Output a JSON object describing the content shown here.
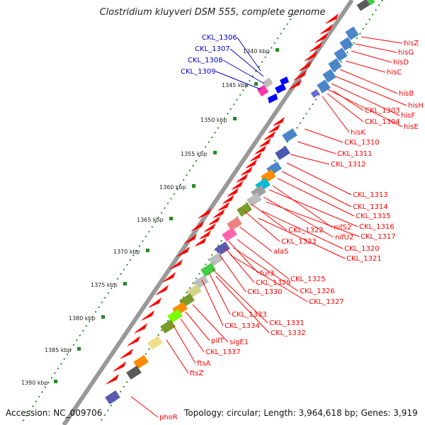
{
  "title": "Clostridium kluyveri DSM 555, complete genome",
  "footer": {
    "accession": "Accession: NC_009706",
    "topology": "Topology: circular; Length: 3,964,618 bp; Genes: 3,919"
  },
  "colors": {
    "backbone": "#888888",
    "forward_arrow": "#ff0000",
    "reverse_arrow": "#0000ff",
    "blue_label": "#0000cc",
    "red_label": "#ff0000",
    "tick": "#228b22"
  },
  "ticks": [
    "1340 kbp",
    "1345 kbp",
    "1350 kbp",
    "1355 kbp",
    "1360 kbp",
    "1365 kbp",
    "1370 kbp",
    "1375 kbp",
    "1380 kbp",
    "1385 kbp",
    "1390 kbp"
  ],
  "genes_blue": [
    "CKL_1306",
    "CKL_1307",
    "CKL_1308",
    "CKL_1309"
  ],
  "genes_red": [
    "hisZ",
    "hisG",
    "hisD",
    "hisC",
    "hisB",
    "hisH",
    "hisF",
    "hisE",
    "CKL_1303",
    "CKL_1304",
    "hisK",
    "CKL_1310",
    "CKL_1311",
    "CKL_1312",
    "CKL_1313",
    "CKL_1314",
    "CKL_1315",
    "nifS2",
    "CKL_1316",
    "nifU2",
    "CKL_1317",
    "CKL_1322",
    "CKL_1323",
    "CKL_1320",
    "CKL_1321",
    "alaS",
    "fur3",
    "CKL_1325",
    "CKL_1329",
    "CKL_1326",
    "CKL_1330",
    "CKL_1327",
    "CKL_1333",
    "CKL_1331",
    "CKL_1334",
    "CKL_1332",
    "pilT",
    "sigE1",
    "CKL_1337",
    "ftsA",
    "ftsZ",
    "phoR"
  ]
}
